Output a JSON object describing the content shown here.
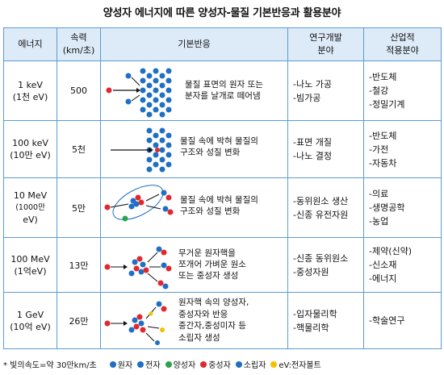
{
  "title": "양성자 에너지에 따른 양성자-물질 기본반응과 활용분야",
  "headers": {
    "energy": "에너지",
    "speed": "속력\n(km/초)",
    "basic": "기본반응",
    "research": "연구개발\n분야",
    "industry": "산업적\n적용분야"
  },
  "rows": [
    {
      "energy": [
        "1 keV",
        "(1천 eV)"
      ],
      "speed": "500",
      "reaction": [
        "물질 표면의 원자 또는",
        "분자를 날개로 떼어냄"
      ],
      "research": [
        "-나노 가공",
        "-빔가공"
      ],
      "industry": [
        "-반도체",
        "-철강",
        "-정밀기계"
      ]
    },
    {
      "energy": [
        "100 keV",
        "(10만 eV)"
      ],
      "speed": "5천",
      "reaction": [
        "물질 속에 박혀 물질의",
        "구조와 성질 변화"
      ],
      "research": [
        "-표면 개질",
        "-나노 결정"
      ],
      "industry": [
        "-반도체",
        "-가전",
        "-자동차"
      ]
    },
    {
      "energy": [
        "10 MeV",
        "(1000만",
        "eV)"
      ],
      "speed": "5만",
      "reaction": [
        "물질 속에 박혀 물질의",
        "구조와 성질 변화"
      ],
      "research": [
        "-동위원소 생산",
        "-신종 유전자원"
      ],
      "industry": [
        "-의료",
        "-생명공학",
        "-농업"
      ]
    },
    {
      "energy": [
        "100 MeV",
        "(1억eV)"
      ],
      "speed": "13만",
      "reaction": [
        "무거운 원자핵을",
        "쪼개어 가벼운 원소",
        "또는 중성자 생성"
      ],
      "research": [
        "-신종 동위원소",
        "-중성자원"
      ],
      "industry": [
        "-제약(신약)",
        "-신소재",
        "-에너지"
      ]
    },
    {
      "energy": [
        "1 GeV",
        "(10억 eV)"
      ],
      "speed": "26만",
      "reaction": [
        "원자핵 속의 양성자,",
        "중성자와 반응",
        "중간자,중성미자 등",
        "소립자 생성"
      ],
      "research": [
        "-입자물리학",
        "-핵물리학"
      ],
      "industry": [
        "-학술연구"
      ]
    }
  ],
  "footer": {
    "note": "* 빛의속도=약 30만km/초",
    "legend": [
      {
        "label": "원자",
        "color": "#1f6fc4"
      },
      {
        "label": "전자",
        "color": "#1f6fc4"
      },
      {
        "label": "양성자",
        "color": "#2aa34a"
      },
      {
        "label": "중성자",
        "color": "#e0282e"
      },
      {
        "label": "소립자",
        "color": "#1f6fc4"
      },
      {
        "label": "eV:전자볼트",
        "color": "#f2c200"
      }
    ]
  }
}
